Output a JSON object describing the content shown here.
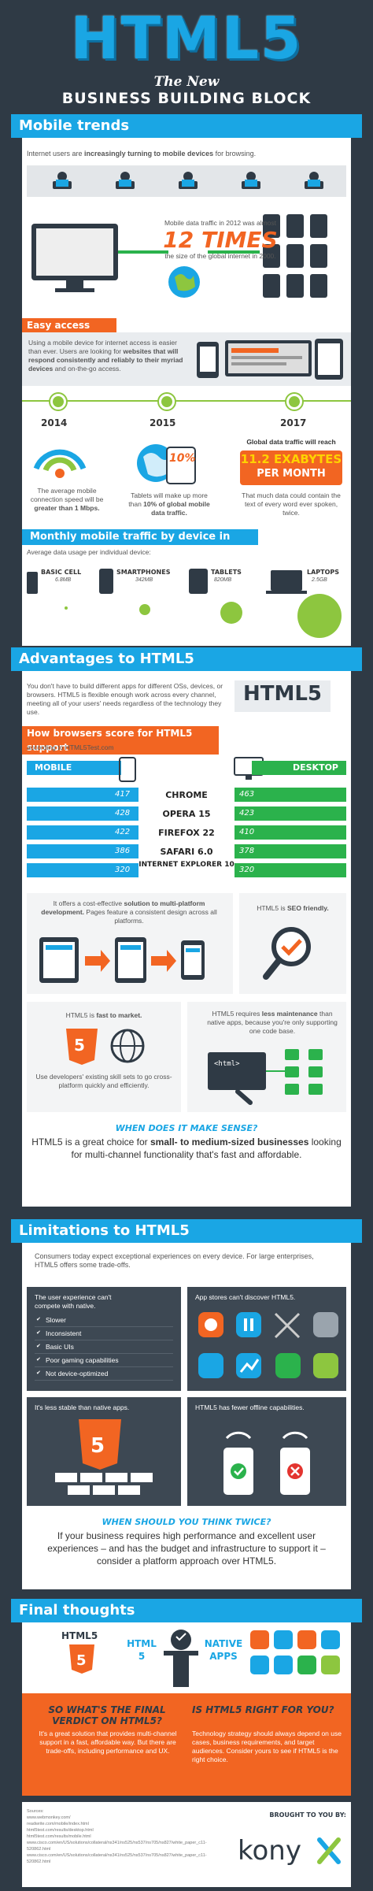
{
  "header": {
    "title": "HTML5",
    "subtitle1": "The New",
    "subtitle2": "BUSINESS BUILDING BLOCK"
  },
  "mobile_trends": {
    "heading": "Mobile trends",
    "intro_pre": "Internet users are ",
    "intro_bold": "increasingly turning to mobile devices",
    "intro_post": " for browsing.",
    "traffic_pre": "Mobile data traffic in 2012 was almost",
    "traffic_big": "12 TIMES",
    "traffic_post": "the size of the global internet in 2000.",
    "easy_access": {
      "heading": "Easy access",
      "text_pre": "Using a mobile device for internet access is easier than ever. Users are looking for ",
      "text_bold": "websites that will respond consistently and reliably to their myriad devices",
      "text_post": " and on-the-go access."
    },
    "timeline": [
      {
        "year": "2014",
        "text_pre": "The average mobile connection speed will be ",
        "text_bold": "greater than 1 Mbps."
      },
      {
        "year": "2015",
        "text_pre": "Tablets will make up more than ",
        "text_bold": "10% of global mobile data traffic.",
        "badge": "10%"
      },
      {
        "year": "2017",
        "text_top": "Global data traffic will reach",
        "big1": "11.2 EXABYTES",
        "big2": "PER MONTH",
        "text_bottom": "That much data could contain the text of every word ever spoken, twice."
      }
    ],
    "monthly": {
      "heading": "Monthly mobile traffic by device in 2012",
      "sub": "Average data usage per individual device:",
      "devices": [
        {
          "name": "BASIC CELL",
          "value": "6.8MB"
        },
        {
          "name": "SMARTPHONES",
          "value": "342MB"
        },
        {
          "name": "TABLETS",
          "value": "820MB"
        },
        {
          "name": "LAPTOPS",
          "value": "2.5GB"
        }
      ]
    }
  },
  "advantages": {
    "heading": "Advantages to HTML5",
    "intro": "You don't have to build different apps for different OSs, devices, or browsers. HTML5 is flexible enough work across every channel, meeting all of your users' needs regardless of the technology they use.",
    "logo": "HTML5",
    "browsers": {
      "heading": "How browsers score for HTML5 support",
      "source": "according to HTML5Test.com",
      "mobile_label": "MOBILE",
      "desktop_label": "DESKTOP",
      "rows": [
        {
          "name": "CHROME",
          "mobile": "417",
          "desktop": "463"
        },
        {
          "name": "OPERA 15",
          "mobile": "428",
          "desktop": "423"
        },
        {
          "name": "FIREFOX 22",
          "mobile": "422",
          "desktop": "410"
        },
        {
          "name": "SAFARI 6.0",
          "mobile": "386",
          "desktop": "378"
        },
        {
          "name": "INTERNET EXPLORER 10",
          "mobile": "320",
          "desktop": "320"
        }
      ]
    },
    "tile1_pre": "It offers a cost-effective ",
    "tile1_bold": "solution to multi-platform development.",
    "tile1_post": " Pages feature a consistent design across all platforms.",
    "tile2_pre": "HTML5 is ",
    "tile2_bold": "SEO friendly.",
    "tile3_pre": "HTML5 is ",
    "tile3_bold": "fast to market.",
    "tile3_post": "Use developers' existing skill sets to go cross-platform quickly and efficiently.",
    "tile4_pre": "HTML5 requires ",
    "tile4_bold": "less maintenance",
    "tile4_post": " than native apps, because you're only supporting one code base.",
    "code_label": "<html>",
    "q_title": "WHEN DOES IT MAKE SENSE?",
    "q_text_pre": "HTML5 is a great choice for ",
    "q_text_bold": "small- to medium-sized businesses",
    "q_text_post": " looking for multi-channel functionality that's fast and affordable."
  },
  "limitations": {
    "heading": "Limitations to HTML5",
    "intro": "Consumers today expect exceptional experiences on every device. For large enterprises, HTML5 offers some trade-offs.",
    "tile1_title": "The user experience can't compete with native.",
    "tile1_items": [
      "Slower",
      "Inconsistent",
      "Basic UIs",
      "Poor gaming capabilities",
      "Not device-optimized"
    ],
    "tile2_title": "App stores can't discover HTML5.",
    "tile3_title": "It's less stable than native apps.",
    "tile4_title": "HTML5 has fewer offline capabilities.",
    "q_title": "WHEN SHOULD YOU THINK TWICE?",
    "q_text": "If your business requires high performance and excellent user experiences – and has the budget and infrastructure to support it – consider a platform approach over HTML5."
  },
  "final": {
    "heading": "Final thoughts",
    "html5": "HTML5",
    "vs_left1": "HTML",
    "vs_left2": "5",
    "vs_right1": "NATIVE",
    "vs_right2": "APPS",
    "verdict_title": "SO WHAT'S THE FINAL VERDICT ON HTML5?",
    "verdict_text": "It's a great solution that provides multi-channel support in a fast, affordable way. But there are trade-offs, including performance and UX.",
    "right_title": "IS HTML5 RIGHT FOR YOU?",
    "right_text": "Technology strategy should always depend on use cases, business requirements, and target audiences. Consider yours to see if HTML5 is the right choice."
  },
  "footer": {
    "sources_label": "Sources:",
    "sources": [
      "www.webmonkey.com/",
      "readwrite.com/mobile/index.html",
      "html5test.com/results/desktop.html",
      "html5test.com/results/mobile.html",
      "www.cisco.com/en/US/solutions/collateral/ns341/ns525/ns537/ns705/ns827/white_paper_c11-520862.html",
      "www.cisco.com/en/US/solutions/collateral/ns341/ns525/ns537/ns705/ns827/white_paper_c11-520862.html"
    ],
    "brought": "BROUGHT TO YOU BY:",
    "brand": "kony"
  }
}
